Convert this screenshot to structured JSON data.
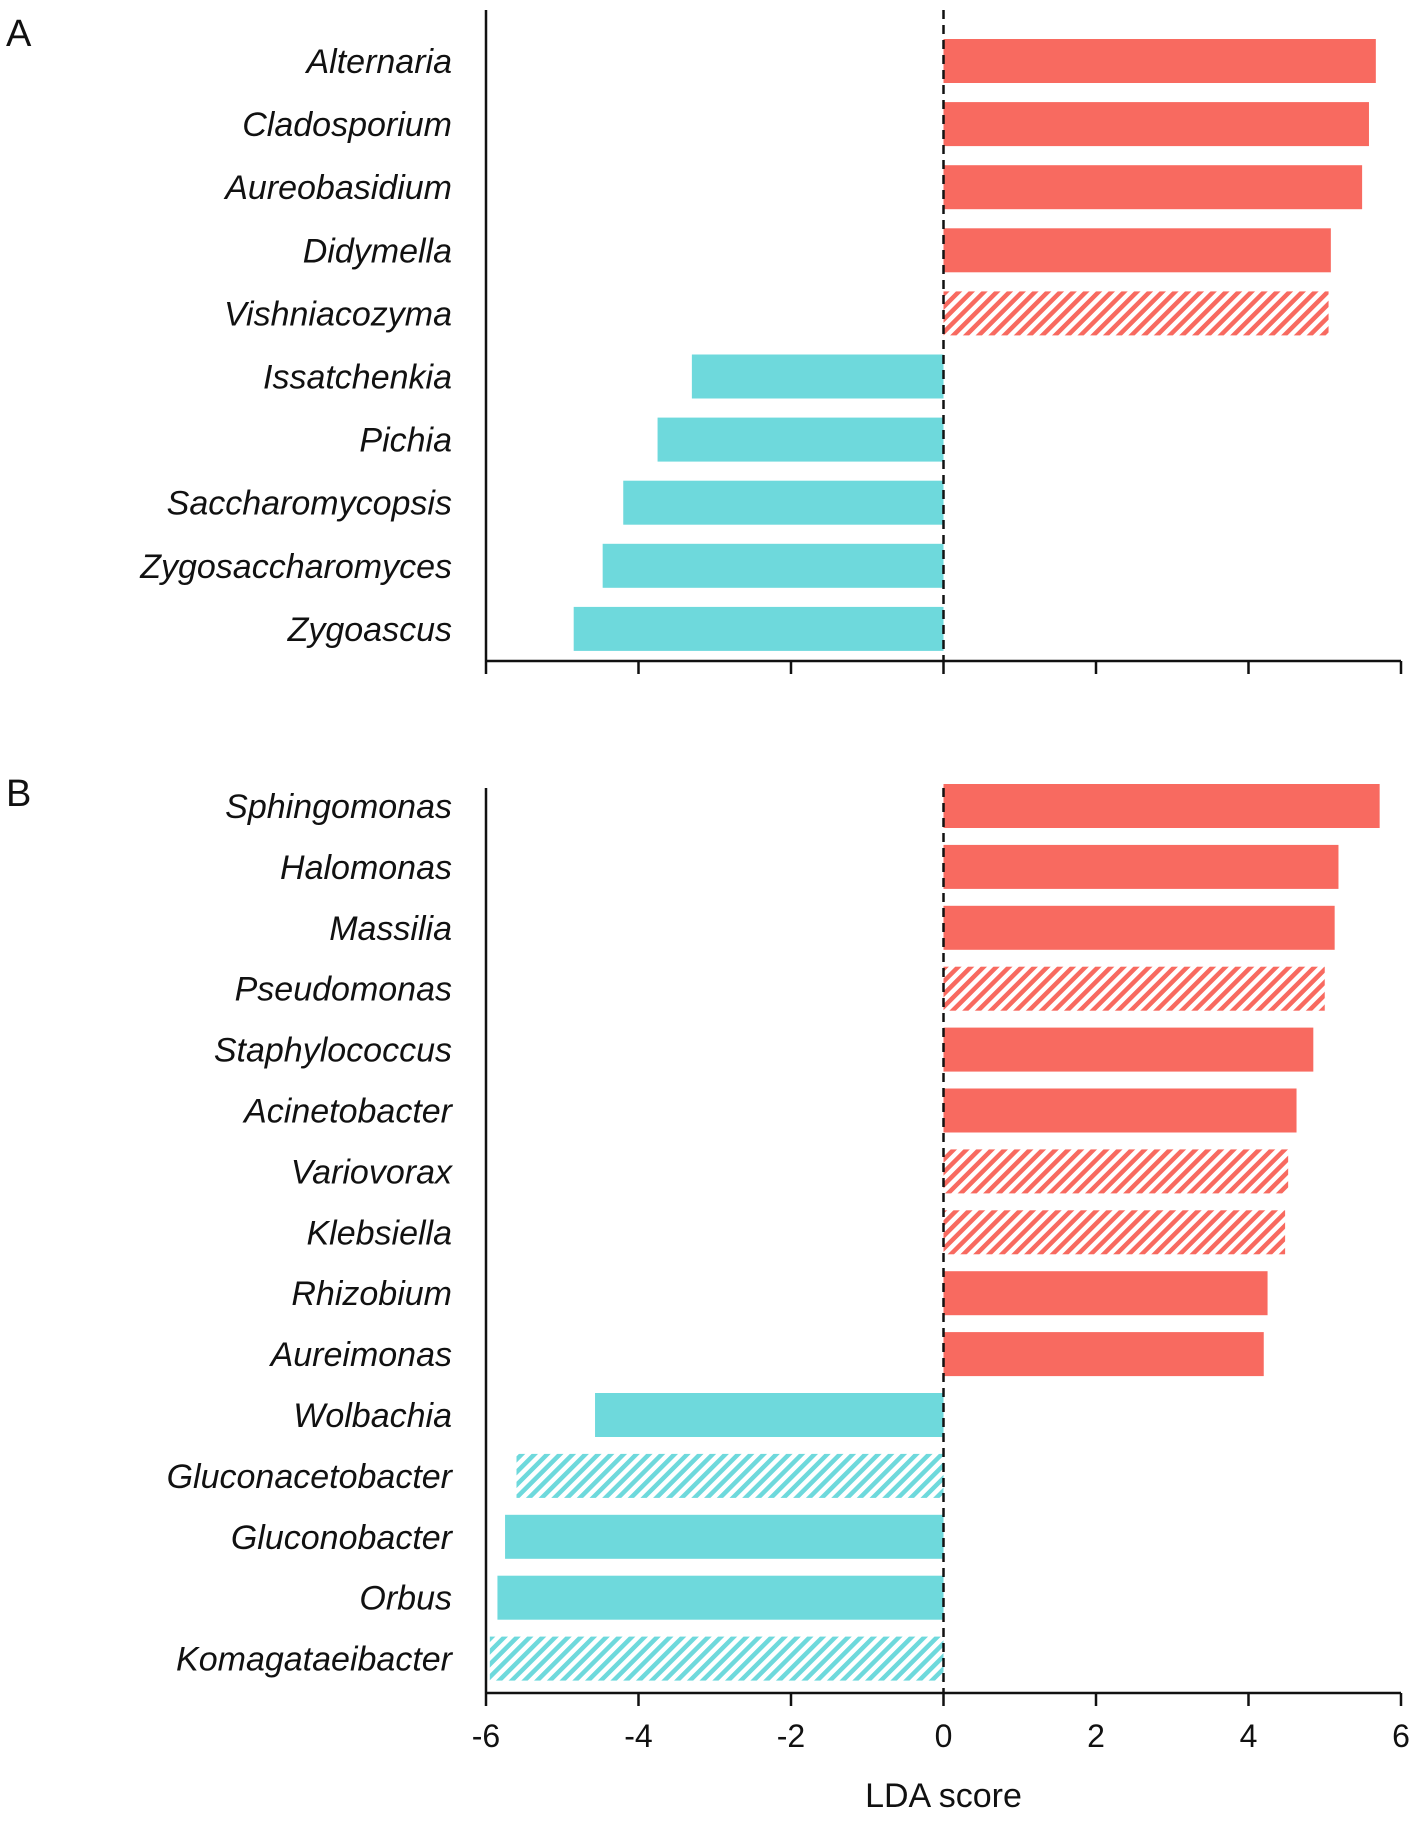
{
  "colors": {
    "positive": "#f86a60",
    "negative": "#6ed9dc",
    "axis": "#111111"
  },
  "chart_data": [
    {
      "type": "bar",
      "orientation": "horizontal",
      "panel_label": "A",
      "categories": [
        "Alternaria",
        "Cladosporium",
        "Aureobasidium",
        "Didymella",
        "Vishniacozyma",
        "Issatchenkia",
        "Pichia",
        "Saccharomycopsis",
        "Zygosaccharomyces",
        "Zygoascus"
      ],
      "values": [
        5.67,
        5.58,
        5.49,
        5.08,
        5.05,
        -3.3,
        -3.75,
        -4.2,
        -4.47,
        -4.85
      ],
      "hatched": [
        false,
        false,
        false,
        false,
        true,
        false,
        false,
        false,
        false,
        false
      ],
      "xlim": [
        -6,
        6
      ],
      "xticks": [
        -6,
        -4,
        -2,
        0,
        2,
        4,
        6
      ],
      "show_tick_labels": false,
      "xlabel": ""
    },
    {
      "type": "bar",
      "orientation": "horizontal",
      "panel_label": "B",
      "categories": [
        "Sphingomonas",
        "Halomonas",
        "Massilia",
        "Pseudomonas",
        "Staphylococcus",
        "Acinetobacter",
        "Variovorax",
        "Klebsiella",
        "Rhizobium",
        "Aureimonas",
        "Wolbachia",
        "Gluconacetobacter",
        "Gluconobacter",
        "Orbus",
        "Komagataeibacter"
      ],
      "values": [
        5.72,
        5.18,
        5.13,
        5.0,
        4.85,
        4.63,
        4.52,
        4.48,
        4.25,
        4.2,
        -4.57,
        -5.6,
        -5.75,
        -5.85,
        -5.95
      ],
      "hatched": [
        false,
        false,
        false,
        true,
        false,
        false,
        true,
        true,
        false,
        false,
        false,
        true,
        false,
        false,
        true
      ],
      "xlim": [
        -6,
        6
      ],
      "xticks": [
        -6,
        -4,
        -2,
        0,
        2,
        4,
        6
      ],
      "tick_labels": [
        "-6",
        "-4",
        "-2",
        "0",
        "2",
        "4",
        "6"
      ],
      "show_tick_labels": true,
      "xlabel": "LDA score"
    }
  ]
}
